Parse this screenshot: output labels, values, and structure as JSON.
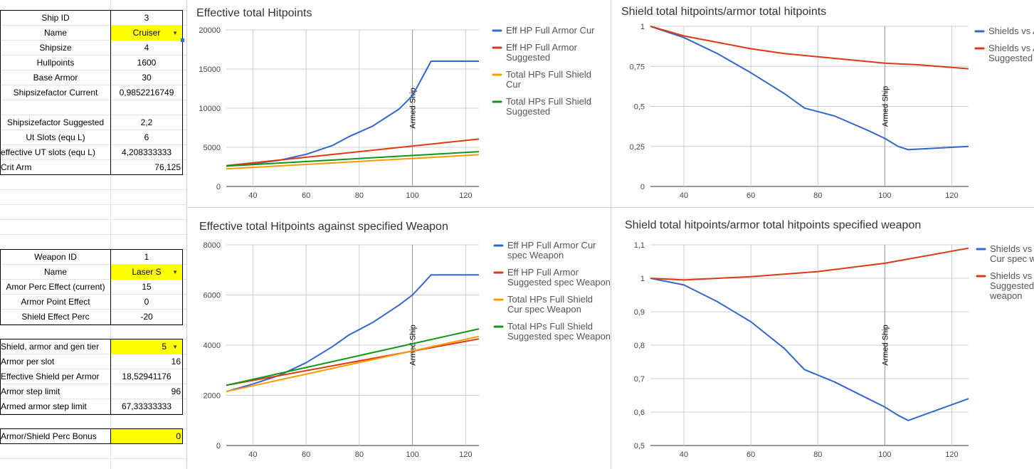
{
  "sheet": {
    "rows": [
      {
        "label": "Ship ID",
        "value": "3"
      },
      {
        "label": "Name",
        "value": "Cruiser",
        "dropdown": true
      },
      {
        "label": "Shipsize",
        "value": "4"
      },
      {
        "label": "Hullpoints",
        "value": "1600"
      },
      {
        "label": "Base Armor",
        "value": "30"
      },
      {
        "label": "Shipsizefactor Current",
        "value": "0,9852216749"
      },
      {
        "label": "Shipsizefactor Suggested",
        "value": "2,2"
      },
      {
        "label": "Ut Slots (equ L)",
        "value": "6"
      },
      {
        "label": "effective UT slots (equ L)",
        "value": "4,208333333"
      },
      {
        "label": "Crit Arm",
        "value": "76,125"
      },
      {
        "label": "Weapon ID",
        "value": "1"
      },
      {
        "label": "Name",
        "value": "Laser S",
        "dropdown": true
      },
      {
        "label": "Amor Perc Effect (current)",
        "value": "15"
      },
      {
        "label": "Armor Point Effect",
        "value": "0"
      },
      {
        "label": "Shield Effect Perc",
        "value": "-20"
      },
      {
        "label": "Shield, armor and gen tier",
        "value": "5",
        "dropdown": true
      },
      {
        "label": "Armor per slot",
        "value": "16"
      },
      {
        "label": "Effective Shield per Armor",
        "value": "18,52941176"
      },
      {
        "label": "Armor step limit",
        "value": "96"
      },
      {
        "label": "Armed armor step limit",
        "value": "67,33333333"
      },
      {
        "label": "Armor/Shield Perc Bonus",
        "value": "0"
      }
    ]
  },
  "colors": {
    "blue": "#3366cc",
    "red": "#dc3912",
    "orange": "#ff9900",
    "green": "#109618",
    "highlight": "#ffff00"
  },
  "chart_data": [
    {
      "type": "line",
      "title": "Effective total Hitpoints",
      "xlim": [
        30,
        125
      ],
      "ylim": [
        0,
        20000
      ],
      "xticks": [
        40,
        60,
        80,
        100,
        120
      ],
      "yticks": [
        0,
        5000,
        10000,
        15000,
        20000
      ],
      "xtick_labels": [
        "40",
        "60",
        "80",
        "100",
        "120"
      ],
      "ytick_labels": [
        "0",
        "5000",
        "10000",
        "15000",
        "20000"
      ],
      "annotation": {
        "x": 100,
        "text": "Armed Ship"
      },
      "series": [
        {
          "name": "Eff HP Full Armor Cur",
          "color": "#3366cc",
          "points": [
            [
              30,
              2600
            ],
            [
              40,
              2900
            ],
            [
              50,
              3350
            ],
            [
              60,
              4100
            ],
            [
              70,
              5250
            ],
            [
              76,
              6350
            ],
            [
              85,
              7700
            ],
            [
              95,
              9900
            ],
            [
              100,
              11600
            ],
            [
              104,
              14100
            ],
            [
              107,
              16000
            ],
            [
              125,
              16000
            ]
          ]
        },
        {
          "name": "Eff HP Full Armor Suggested",
          "color": "#dc3912",
          "points": [
            [
              30,
              2650
            ],
            [
              125,
              6050
            ]
          ]
        },
        {
          "name": "Total HPs Full Shield Cur",
          "color": "#ff9900",
          "points": [
            [
              30,
              2250
            ],
            [
              125,
              4050
            ]
          ]
        },
        {
          "name": "Total HPs Full Shield Suggested",
          "color": "#109618",
          "points": [
            [
              30,
              2600
            ],
            [
              125,
              4450
            ]
          ]
        }
      ]
    },
    {
      "type": "line",
      "title": "Shield total hitpoints/armor total hitpoints",
      "xlim": [
        30,
        125
      ],
      "ylim": [
        0,
        1
      ],
      "xticks": [
        40,
        60,
        80,
        100,
        120
      ],
      "yticks": [
        0,
        0.25,
        0.5,
        0.75,
        1
      ],
      "xtick_labels": [
        "40",
        "60",
        "80",
        "100",
        "120"
      ],
      "ytick_labels": [
        "0",
        "0,25",
        "0,5",
        "0,75",
        "1"
      ],
      "annotation": {
        "x": 100,
        "text": "Armed Ship"
      },
      "series": [
        {
          "name": "Shields vs Armor Cur",
          "color": "#3366cc",
          "points": [
            [
              30,
              1
            ],
            [
              40,
              0.93
            ],
            [
              50,
              0.83
            ],
            [
              60,
              0.71
            ],
            [
              70,
              0.58
            ],
            [
              76,
              0.49
            ],
            [
              85,
              0.44
            ],
            [
              95,
              0.35
            ],
            [
              100,
              0.3
            ],
            [
              104,
              0.25
            ],
            [
              107,
              0.23
            ],
            [
              125,
              0.25
            ]
          ]
        },
        {
          "name": "Shields vs Armor Suggested",
          "color": "#dc3912",
          "points": [
            [
              30,
              1
            ],
            [
              40,
              0.94
            ],
            [
              50,
              0.9
            ],
            [
              60,
              0.86
            ],
            [
              70,
              0.83
            ],
            [
              80,
              0.81
            ],
            [
              90,
              0.79
            ],
            [
              100,
              0.77
            ],
            [
              110,
              0.76
            ],
            [
              125,
              0.735
            ]
          ]
        }
      ]
    },
    {
      "type": "line",
      "title": "Effective total Hitpoints against specified Weapon",
      "xlim": [
        30,
        125
      ],
      "ylim": [
        0,
        8000
      ],
      "xticks": [
        40,
        60,
        80,
        100,
        120
      ],
      "yticks": [
        0,
        2000,
        4000,
        6000,
        8000
      ],
      "xtick_labels": [
        "40",
        "60",
        "80",
        "100",
        "120"
      ],
      "ytick_labels": [
        "0",
        "2000",
        "4000",
        "6000",
        "8000"
      ],
      "annotation": {
        "x": 100,
        "text": "Armed Ship"
      },
      "series": [
        {
          "name": "Eff HP Full Armor Cur spec Weapon",
          "color": "#3366cc",
          "points": [
            [
              30,
              2150
            ],
            [
              40,
              2450
            ],
            [
              50,
              2800
            ],
            [
              60,
              3300
            ],
            [
              70,
              3950
            ],
            [
              76,
              4400
            ],
            [
              85,
              4900
            ],
            [
              95,
              5600
            ],
            [
              100,
              6000
            ],
            [
              104,
              6450
            ],
            [
              107,
              6800
            ],
            [
              125,
              6800
            ]
          ]
        },
        {
          "name": "Eff HP Full Armor Suggested spec Weapon",
          "color": "#dc3912",
          "points": [
            [
              30,
              2400
            ],
            [
              125,
              4250
            ]
          ]
        },
        {
          "name": "Total HPs Full Shield Cur spec Weapon",
          "color": "#ff9900",
          "points": [
            [
              30,
              2150
            ],
            [
              125,
              4350
            ]
          ]
        },
        {
          "name": "Total HPs Full Shield Suggested spec Weapon",
          "color": "#109618",
          "points": [
            [
              30,
              2400
            ],
            [
              125,
              4650
            ]
          ]
        }
      ]
    },
    {
      "type": "line",
      "title": "Shield total hitpoints/armor total hitpoints specified weapon",
      "xlim": [
        30,
        125
      ],
      "ylim": [
        0.5,
        1.1
      ],
      "xticks": [
        40,
        60,
        80,
        100,
        120
      ],
      "yticks": [
        0.5,
        0.6,
        0.7,
        0.8,
        0.9,
        1,
        1.1
      ],
      "xtick_labels": [
        "40",
        "60",
        "80",
        "100",
        "120"
      ],
      "ytick_labels": [
        "0,5",
        "0,6",
        "0,7",
        "0,8",
        "0,9",
        "1",
        "1,1"
      ],
      "annotation": {
        "x": 100,
        "text": "Armed Ship"
      },
      "series": [
        {
          "name": "Shields vs Armor Cur spec weapon",
          "color": "#3366cc",
          "points": [
            [
              30,
              1
            ],
            [
              40,
              0.98
            ],
            [
              50,
              0.93
            ],
            [
              60,
              0.87
            ],
            [
              70,
              0.79
            ],
            [
              76,
              0.727
            ],
            [
              85,
              0.69
            ],
            [
              95,
              0.64
            ],
            [
              100,
              0.615
            ],
            [
              104,
              0.59
            ],
            [
              107,
              0.575
            ],
            [
              125,
              0.64
            ]
          ]
        },
        {
          "name": "Shields vs Armor Suggested spec weapon",
          "color": "#dc3912",
          "points": [
            [
              30,
              1
            ],
            [
              40,
              0.995
            ],
            [
              60,
              1.005
            ],
            [
              80,
              1.02
            ],
            [
              100,
              1.045
            ],
            [
              125,
              1.09
            ]
          ]
        }
      ]
    }
  ]
}
